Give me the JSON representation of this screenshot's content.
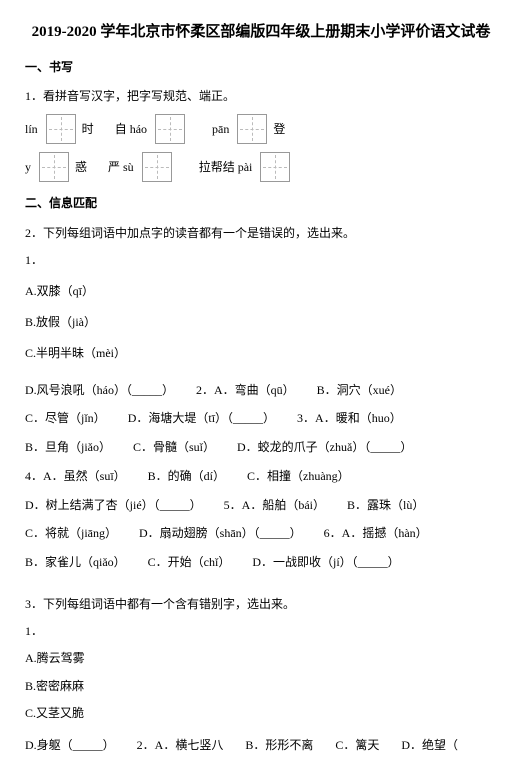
{
  "title": "2019-2020 学年北京市怀柔区部编版四年级上册期末小学评价语文试卷",
  "sections": {
    "s1": "一、书写",
    "s2": "二、信息匹配"
  },
  "q1": {
    "prompt": "1．看拼音写汉字，把字写规范、端正。",
    "row1": {
      "a_pre": "lín",
      "a_post": "时",
      "b_pre": "自 háo",
      "b_post": "",
      "c_pre": "pān",
      "c_post": "登"
    },
    "row2": {
      "a_pre": "y",
      "a_post": "惑",
      "b_pre": "严 sù",
      "b_post": "",
      "c_pre": "拉帮结 pài",
      "c_post": ""
    }
  },
  "q2": {
    "prompt": "2．下列每组词语中加点字的读音都有一个是错误的，选出来。",
    "sub": "1．",
    "A": "A.双膝（qī）",
    "B": "B.放假（jià）",
    "C": "C.半明半昧（mèi）",
    "flow": [
      "D.风号浪吼（háo）（_____）",
      "2．A．弯曲（qū）",
      "B．洞穴（xué）",
      "C．尽管（jǐn）",
      "D．海塘大堤（tī）（_____）",
      "3．A．暖和（huo）",
      "B．旦角（jiǎo）",
      "C．骨髓（suǐ）",
      "D．蛟龙的爪子（zhuǎ）（_____）",
      "4．A．虽然（suī）",
      "B．的确（dí）",
      "C．相撞（zhuàng）",
      "D．树上结满了杏（jié）（_____）",
      "5．A．船舶（bái）",
      "B．露珠（lù）",
      "C．将就（jiāng）",
      "D．扇动翅膀（shān）（_____）",
      "6．A．摇撼（hàn）",
      "B．家雀儿（qiǎo）",
      "C．开始（chǐ）",
      "D．一战即收（jí）（_____）"
    ]
  },
  "q3": {
    "prompt": "3．下列每组词语中都有一个含有错别字，选出来。",
    "sub": "1．",
    "A": "A.腾云驾雾",
    "B": "B.密密麻麻",
    "C": "C.又茎又脆",
    "flow": [
      "D.身躯（_____）",
      "2．A．横七竖八",
      "B．形形不离",
      "C．篱天",
      "D．绝望（"
    ]
  }
}
